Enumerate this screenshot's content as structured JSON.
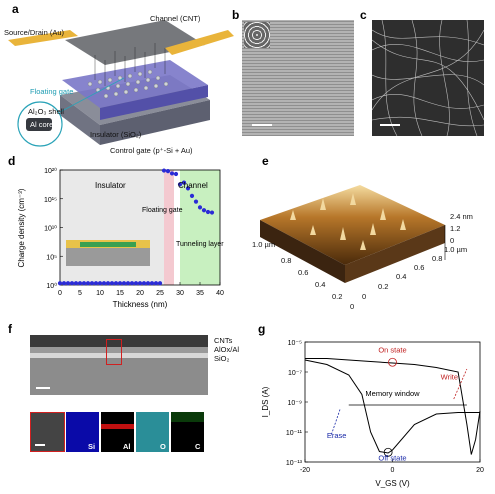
{
  "panels": {
    "a": {
      "letter": "a",
      "labels": {
        "source_drain": "Source/Drain (Au)",
        "channel": "Channel (CNT)",
        "floating_gate": "Floating gate",
        "shell": "Al₂O₃ shell",
        "core": "Al core",
        "insulator": "Insulator (SiO₂)",
        "control_gate": "Control gate (p⁺-Si + Au)"
      }
    },
    "b": {
      "letter": "b"
    },
    "c": {
      "letter": "c"
    },
    "d": {
      "letter": "d",
      "ylabel": "Charge density (cm⁻³)",
      "xlabel": "Thickness (nm)",
      "yticks": [
        "10²⁰",
        "10¹⁵",
        "10¹⁰",
        "10⁵",
        "10⁰"
      ],
      "xticks": [
        "0",
        "5",
        "10",
        "15",
        "20",
        "25",
        "30",
        "35",
        "40"
      ],
      "region_insulator": "Insulator",
      "region_channel": "Channel",
      "annot_floating": "Floating gate",
      "annot_tunneling": "Tunneling layer"
    },
    "e": {
      "letter": "e",
      "zticks": [
        "2.4 nm",
        "1.2",
        "0"
      ],
      "xticks": [
        "1.0 µm",
        "0.8",
        "0.6",
        "0.4",
        "0.2",
        "0"
      ],
      "yticks": [
        "1.0 µm",
        "0.8",
        "0.6",
        "0.4",
        "0.2",
        "0"
      ]
    },
    "f": {
      "letter": "f",
      "layers": [
        "CNTs",
        "AlOx/Al",
        "SiO₂"
      ],
      "eds": [
        "Si",
        "Al",
        "O",
        "C"
      ]
    },
    "g": {
      "letter": "g",
      "ylabel": "I_DS (A)",
      "xlabel": "V_GS (V)",
      "yticks": [
        "10⁻⁵",
        "10⁻⁷",
        "10⁻⁹",
        "10⁻¹¹",
        "10⁻¹³"
      ],
      "xticks": [
        "-20",
        "0",
        "20"
      ],
      "on_state": "On state",
      "off_state": "Off state",
      "write": "Write",
      "erase": "Erase",
      "memory_window": "Memory window"
    }
  },
  "chart_data": [
    {
      "type": "scatter",
      "panel": "d",
      "xlabel": "Thickness (nm)",
      "ylabel": "Charge density (cm⁻³)",
      "xlim": [
        0,
        40
      ],
      "ylim_log10": [
        0,
        20
      ],
      "x": [
        0,
        1,
        2,
        3,
        4,
        5,
        6,
        7,
        8,
        9,
        10,
        11,
        12,
        13,
        14,
        15,
        16,
        17,
        18,
        19,
        20,
        21,
        22,
        23,
        24,
        25,
        26,
        27,
        28,
        29,
        30,
        31,
        32,
        33,
        34,
        35,
        36,
        37,
        38
      ],
      "log10_y": [
        0.3,
        0.3,
        0.3,
        0.3,
        0.3,
        0.3,
        0.3,
        0.3,
        0.3,
        0.3,
        0.3,
        0.3,
        0.3,
        0.3,
        0.3,
        0.3,
        0.3,
        0.3,
        0.3,
        0.3,
        0.3,
        0.3,
        0.3,
        0.3,
        0.3,
        0.3,
        19.9,
        19.8,
        19.4,
        19.3,
        17.5,
        17.8,
        16.8,
        15.5,
        14.5,
        13.5,
        13.0,
        12.7,
        12.6
      ],
      "color": "#2b2bd6",
      "bands": [
        {
          "name": "floating gate",
          "x": [
            26,
            28.5
          ],
          "color": "#f4c9d0"
        },
        {
          "name": "tunneling layer",
          "x": [
            28.5,
            30
          ],
          "color": "#ffffff"
        },
        {
          "name": "channel",
          "x": [
            30,
            40
          ],
          "color": "#c8f0c0"
        }
      ]
    },
    {
      "type": "line",
      "panel": "g",
      "xlabel": "V_GS (V)",
      "ylabel": "I_DS (A)",
      "xlim": [
        -20,
        20
      ],
      "ylim_log10": [
        -13,
        -5
      ],
      "series": [
        {
          "x": [
            -20,
            -15,
            -10,
            -5,
            0,
            5,
            10,
            15,
            17,
            18,
            19,
            20
          ],
          "log10_y": [
            -6.1,
            -6.1,
            -6.2,
            -6.3,
            -6.4,
            -6.5,
            -6.7,
            -7.0,
            -10.5,
            -12.5,
            -11.5,
            -9.6
          ]
        },
        {
          "x": [
            -20,
            -15,
            -10,
            -7,
            -5,
            -3,
            -1,
            0,
            5,
            10,
            15,
            20
          ],
          "log10_y": [
            -6.2,
            -6.5,
            -7.2,
            -8.5,
            -11.0,
            -12.3,
            -12.4,
            -12.2,
            -10.5,
            -9.8,
            -9.7,
            -9.7
          ]
        }
      ]
    }
  ]
}
